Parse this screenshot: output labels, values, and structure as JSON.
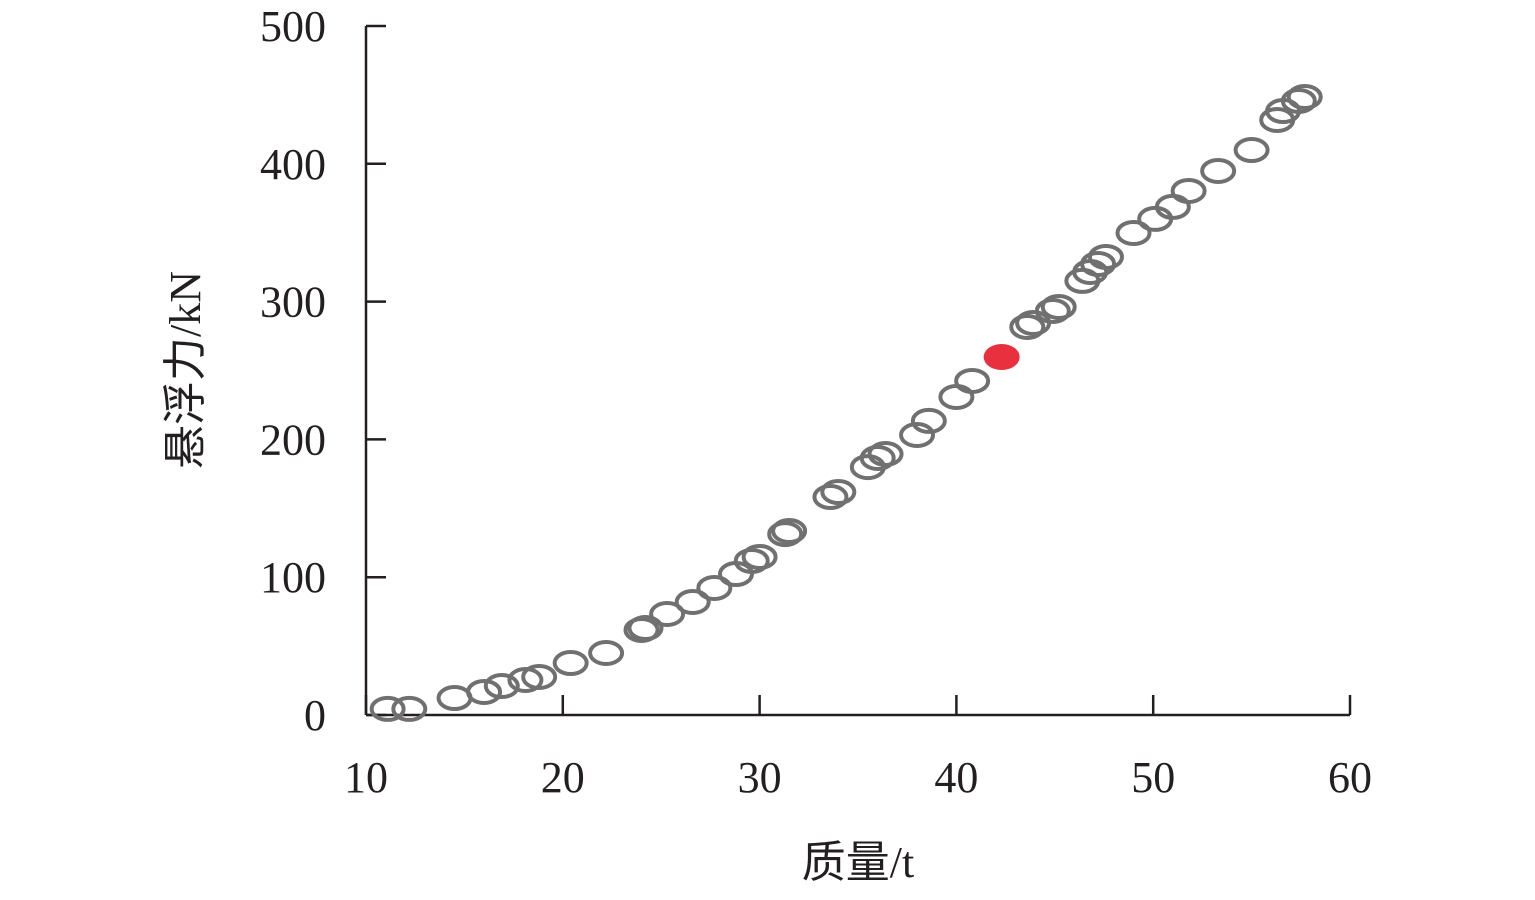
{
  "chart_data": {
    "type": "scatter",
    "xlabel": "质量/t",
    "ylabel": "悬浮力/kN",
    "xlim": [
      10,
      60
    ],
    "ylim": [
      0,
      500
    ],
    "xticks": [
      "10",
      "20",
      "30",
      "40",
      "50",
      "60"
    ],
    "yticks": [
      "0",
      "100",
      "200",
      "300",
      "400",
      "500"
    ],
    "grid": false,
    "colors": {
      "marker_stroke": "#707070",
      "highlight": "#e8303f",
      "axis": "#231f20"
    },
    "points": [
      [
        11.1,
        4.4
      ],
      [
        12.2,
        4.4
      ],
      [
        14.5,
        12.3
      ],
      [
        16.0,
        16.7
      ],
      [
        16.9,
        21.0
      ],
      [
        18.1,
        25.4
      ],
      [
        18.8,
        27.6
      ],
      [
        20.4,
        37.7
      ],
      [
        22.2,
        45.0
      ],
      [
        24.0,
        61.7
      ],
      [
        24.2,
        63.1
      ],
      [
        25.3,
        73.3
      ],
      [
        26.6,
        82.0
      ],
      [
        27.7,
        92.2
      ],
      [
        28.8,
        102.3
      ],
      [
        29.6,
        111.8
      ],
      [
        30.0,
        114.7
      ],
      [
        31.3,
        131.3
      ],
      [
        31.5,
        133.5
      ],
      [
        33.6,
        158.2
      ],
      [
        34.0,
        161.8
      ],
      [
        35.5,
        179.9
      ],
      [
        36.0,
        186.5
      ],
      [
        36.4,
        189.4
      ],
      [
        38.0,
        203.2
      ],
      [
        38.6,
        213.4
      ],
      [
        40.0,
        230.8
      ],
      [
        40.8,
        242.4
      ],
      [
        43.6,
        281.6
      ],
      [
        43.9,
        284.5
      ],
      [
        44.9,
        293.2
      ],
      [
        45.2,
        296.1
      ],
      [
        46.4,
        315.0
      ],
      [
        46.8,
        321.5
      ],
      [
        47.2,
        327.3
      ],
      [
        47.6,
        332.4
      ],
      [
        49.0,
        349.8
      ],
      [
        50.1,
        360.0
      ],
      [
        51.0,
        368.7
      ],
      [
        51.8,
        380.3
      ],
      [
        53.3,
        394.8
      ],
      [
        55.0,
        410.0
      ],
      [
        56.3,
        431.8
      ],
      [
        56.6,
        438.3
      ],
      [
        57.4,
        445.6
      ],
      [
        57.7,
        448.5
      ]
    ],
    "highlight_point": [
      42.3,
      259.8
    ]
  }
}
